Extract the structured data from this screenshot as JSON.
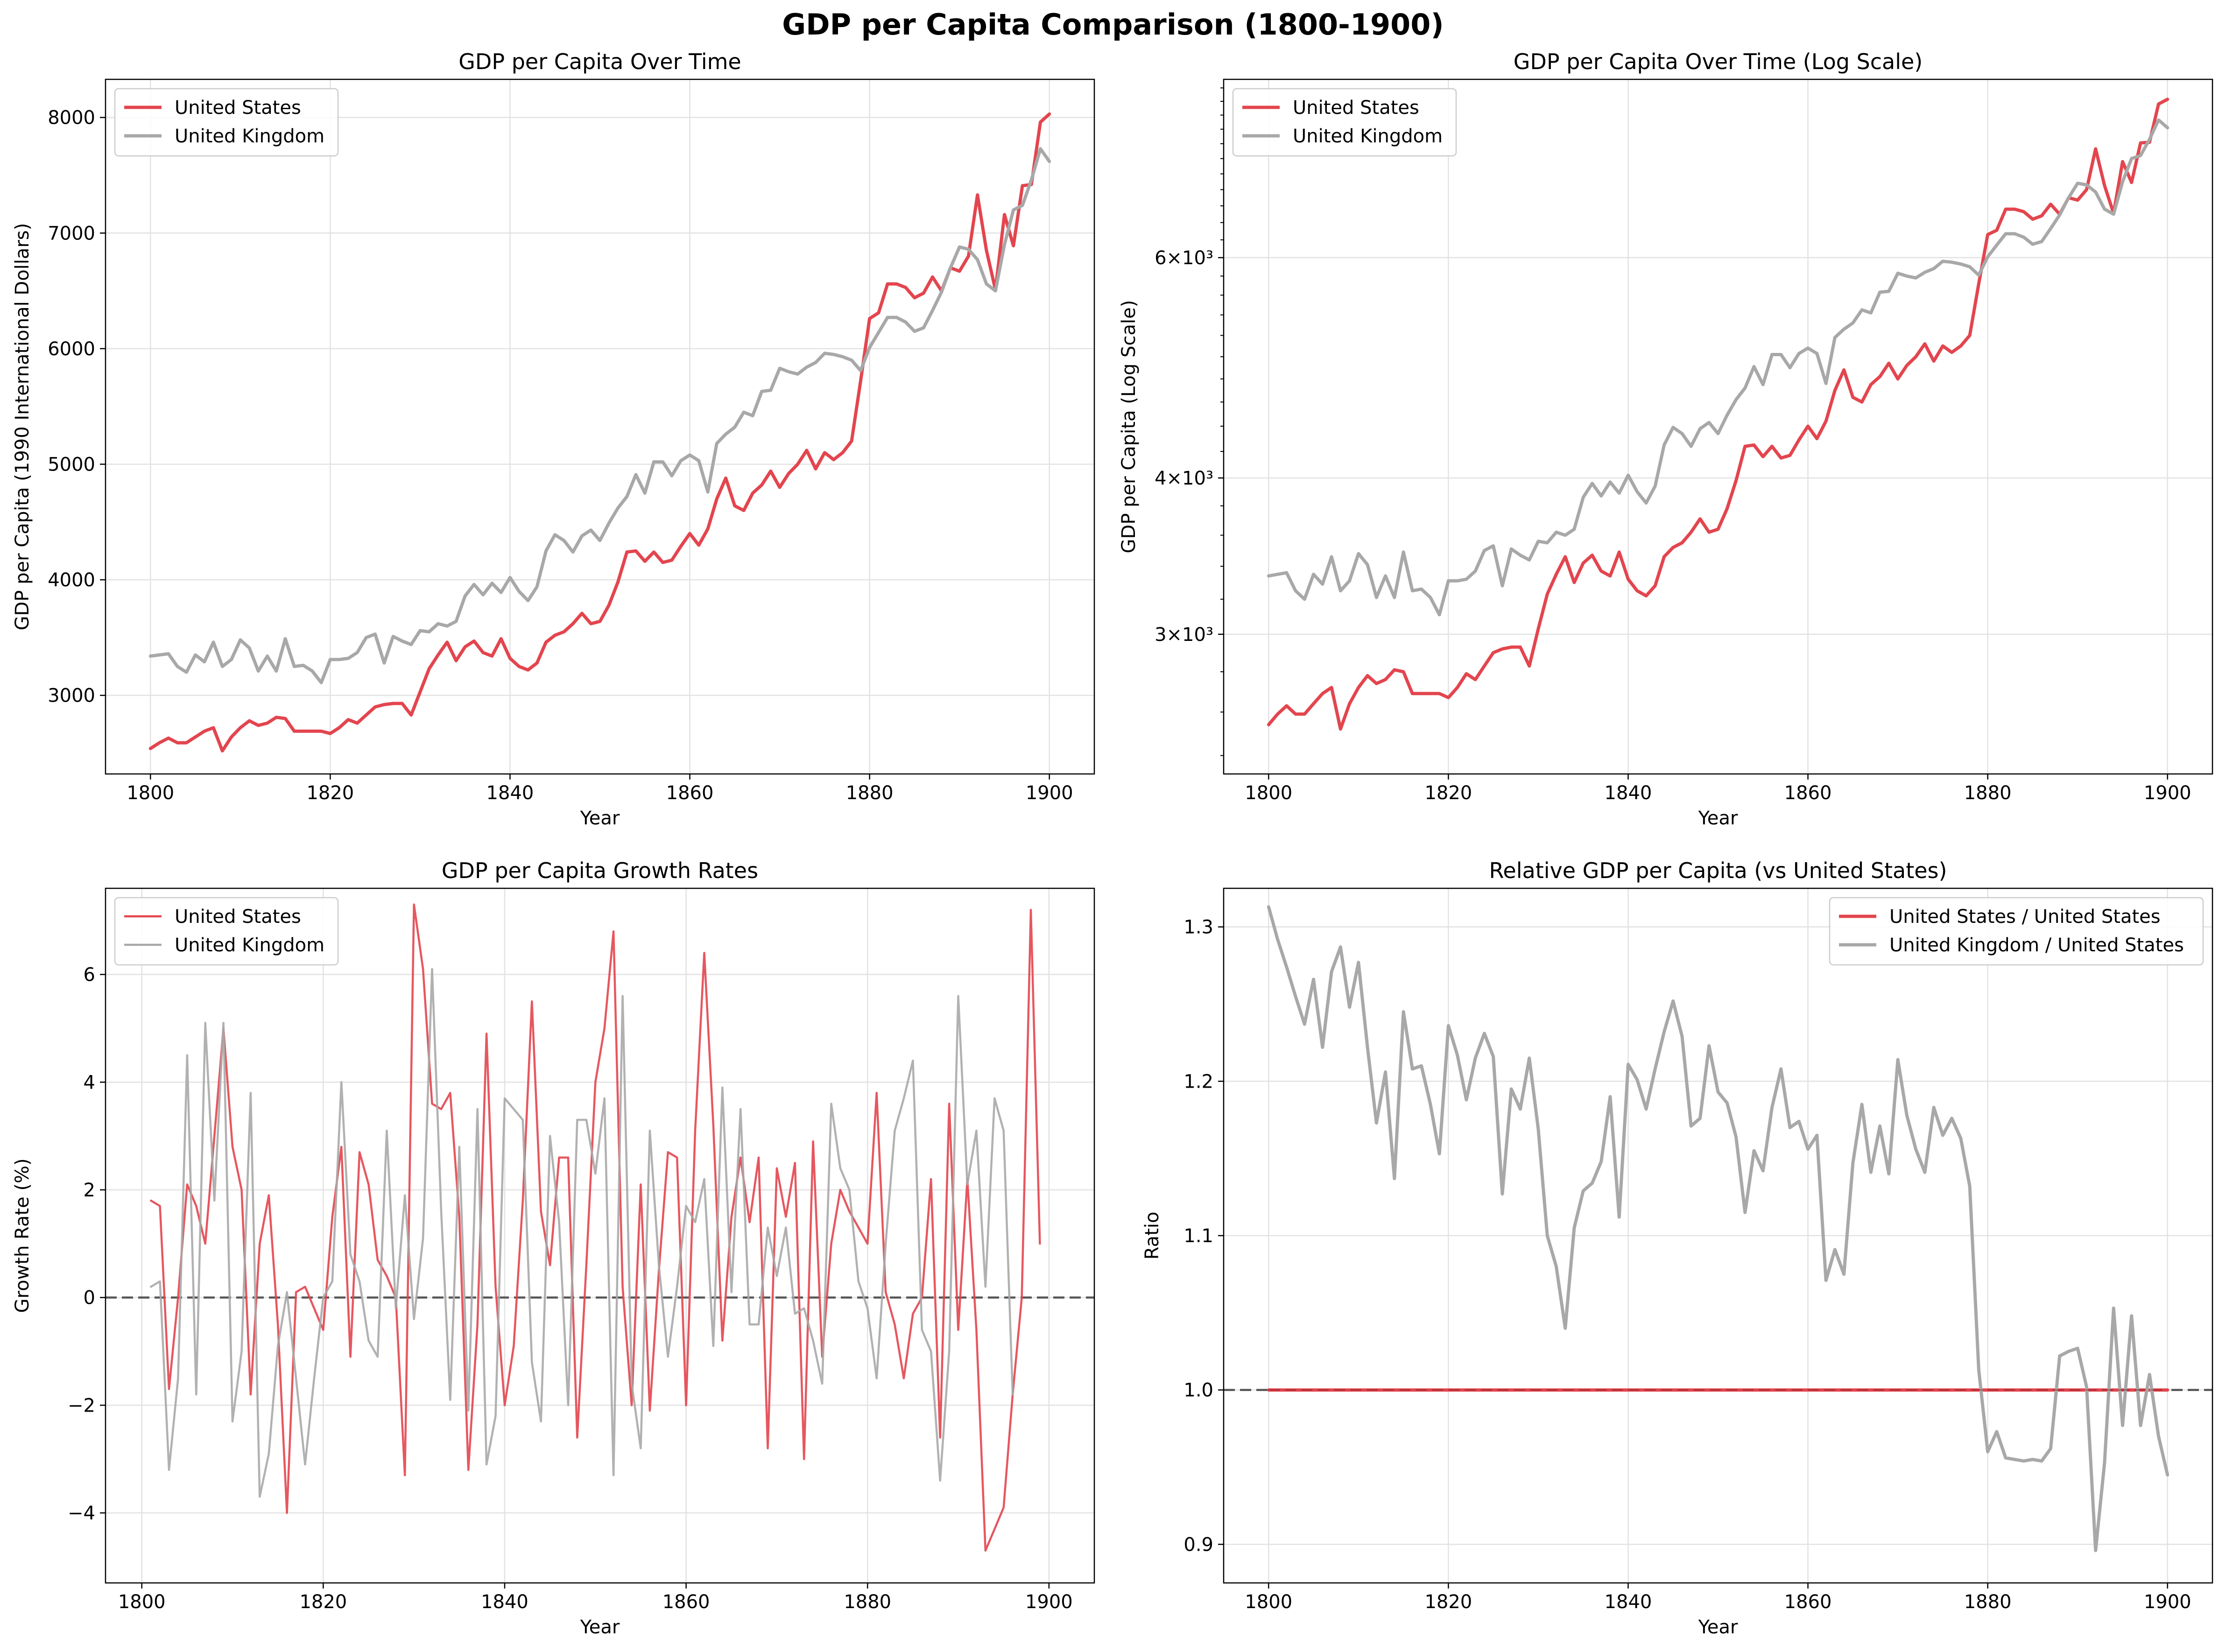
{
  "suptitle": "GDP per Capita Comparison (1800-1900)",
  "colors": {
    "us": "#e3454e",
    "uk": "#a8a8a8",
    "ref": "#555555",
    "grid": "#dddddd"
  },
  "chart_data": [
    {
      "type": "line",
      "title": "GDP per Capita Over Time",
      "xlabel": "Year",
      "ylabel": "GDP per Capita (1990 International Dollars)",
      "xlim": [
        1795,
        1905
      ],
      "ylim": [
        2320,
        8330
      ],
      "xticks": [
        1800,
        1820,
        1840,
        1860,
        1880,
        1900
      ],
      "yticks": [
        3000,
        4000,
        5000,
        6000,
        7000,
        8000
      ],
      "yticklabels": [
        "3000",
        "4000",
        "5000",
        "6000",
        "7000",
        "8000"
      ],
      "legend_position": "upper left",
      "grid": true,
      "series": [
        {
          "name": "United States",
          "color": "#e3454e",
          "x_start": 1800,
          "values": [
            2540,
            2590,
            2630,
            2590,
            2590,
            2640,
            2690,
            2720,
            2520,
            2640,
            2720,
            2780,
            2740,
            2760,
            2810,
            2800,
            2690,
            2690,
            2690,
            2690,
            2670,
            2720,
            2790,
            2760,
            2830,
            2900,
            2920,
            2930,
            2930,
            2830,
            3030,
            3230,
            3350,
            3460,
            3300,
            3420,
            3470,
            3370,
            3340,
            3490,
            3320,
            3250,
            3220,
            3280,
            3460,
            3520,
            3550,
            3620,
            3710,
            3620,
            3640,
            3780,
            3980,
            4240,
            4250,
            4160,
            4240,
            4150,
            4170,
            4290,
            4400,
            4300,
            4440,
            4700,
            4880,
            4640,
            4600,
            4750,
            4820,
            4940,
            4800,
            4920,
            5000,
            5120,
            4960,
            5100,
            5040,
            5100,
            5200,
            5720,
            6260,
            6310,
            6560,
            6560,
            6530,
            6440,
            6480,
            6620,
            6500,
            6700,
            6670,
            6800,
            7330,
            6850,
            6510,
            7160,
            6890,
            7410,
            7420,
            7960,
            8030
          ]
        },
        {
          "name": "United Kingdom",
          "color": "#a8a8a8",
          "x_start": 1800,
          "values": [
            3340,
            3350,
            3360,
            3250,
            3200,
            3350,
            3290,
            3460,
            3250,
            3310,
            3480,
            3410,
            3210,
            3340,
            3210,
            3490,
            3250,
            3260,
            3210,
            3110,
            3310,
            3310,
            3320,
            3370,
            3500,
            3530,
            3280,
            3510,
            3470,
            3440,
            3560,
            3550,
            3620,
            3600,
            3640,
            3860,
            3960,
            3870,
            3970,
            3890,
            4020,
            3900,
            3820,
            3940,
            4250,
            4390,
            4340,
            4240,
            4380,
            4430,
            4340,
            4490,
            4620,
            4720,
            4910,
            4750,
            5020,
            5020,
            4900,
            5030,
            5080,
            5030,
            4760,
            5180,
            5260,
            5320,
            5450,
            5420,
            5630,
            5640,
            5830,
            5800,
            5780,
            5840,
            5880,
            5960,
            5950,
            5930,
            5900,
            5810,
            6010,
            6140,
            6270,
            6270,
            6230,
            6150,
            6180,
            6330,
            6490,
            6700,
            6880,
            6860,
            6770,
            6560,
            6500,
            6900,
            7200,
            7240,
            7460,
            7730,
            7620
          ]
        }
      ]
    },
    {
      "type": "line",
      "title": "GDP per Capita Over Time (Log Scale)",
      "xlabel": "Year",
      "ylabel": "GDP per Capita (Log Scale)",
      "yscale": "log",
      "xlim": [
        1795,
        1905
      ],
      "ylim": [
        2320,
        8330
      ],
      "xticks": [
        1800,
        1820,
        1840,
        1860,
        1880,
        1900
      ],
      "yticks": [
        3000,
        4000,
        6000
      ],
      "yticklabels": [
        "3×10³",
        "4×10³",
        "6×10³"
      ],
      "legend_position": "upper left",
      "grid": true,
      "series": [
        {
          "name": "United States",
          "color": "#e3454e",
          "x_start": 1800,
          "values": [
            2540,
            2590,
            2630,
            2590,
            2590,
            2640,
            2690,
            2720,
            2520,
            2640,
            2720,
            2780,
            2740,
            2760,
            2810,
            2800,
            2690,
            2690,
            2690,
            2690,
            2670,
            2720,
            2790,
            2760,
            2830,
            2900,
            2920,
            2930,
            2930,
            2830,
            3030,
            3230,
            3350,
            3460,
            3300,
            3420,
            3470,
            3370,
            3340,
            3490,
            3320,
            3250,
            3220,
            3280,
            3460,
            3520,
            3550,
            3620,
            3710,
            3620,
            3640,
            3780,
            3980,
            4240,
            4250,
            4160,
            4240,
            4150,
            4170,
            4290,
            4400,
            4300,
            4440,
            4700,
            4880,
            4640,
            4600,
            4750,
            4820,
            4940,
            4800,
            4920,
            5000,
            5120,
            4960,
            5100,
            5040,
            5100,
            5200,
            5720,
            6260,
            6310,
            6560,
            6560,
            6530,
            6440,
            6480,
            6620,
            6500,
            6700,
            6670,
            6800,
            7330,
            6850,
            6510,
            7160,
            6890,
            7410,
            7420,
            7960,
            8030
          ]
        },
        {
          "name": "United Kingdom",
          "color": "#a8a8a8",
          "x_start": 1800,
          "values": [
            3340,
            3350,
            3360,
            3250,
            3200,
            3350,
            3290,
            3460,
            3250,
            3310,
            3480,
            3410,
            3210,
            3340,
            3210,
            3490,
            3250,
            3260,
            3210,
            3110,
            3310,
            3310,
            3320,
            3370,
            3500,
            3530,
            3280,
            3510,
            3470,
            3440,
            3560,
            3550,
            3620,
            3600,
            3640,
            3860,
            3960,
            3870,
            3970,
            3890,
            4020,
            3900,
            3820,
            3940,
            4250,
            4390,
            4340,
            4240,
            4380,
            4430,
            4340,
            4490,
            4620,
            4720,
            4910,
            4750,
            5020,
            5020,
            4900,
            5030,
            5080,
            5030,
            4760,
            5180,
            5260,
            5320,
            5450,
            5420,
            5630,
            5640,
            5830,
            5800,
            5780,
            5840,
            5880,
            5960,
            5950,
            5930,
            5900,
            5810,
            6010,
            6140,
            6270,
            6270,
            6230,
            6150,
            6180,
            6330,
            6490,
            6700,
            6880,
            6860,
            6770,
            6560,
            6500,
            6900,
            7200,
            7240,
            7460,
            7730,
            7620
          ]
        }
      ]
    },
    {
      "type": "line",
      "title": "GDP per Capita Growth Rates",
      "xlabel": "Year",
      "ylabel": "Growth Rate (%)",
      "xlim": [
        1796,
        1905
      ],
      "ylim": [
        -5.3,
        7.6
      ],
      "xticks": [
        1800,
        1820,
        1840,
        1860,
        1880,
        1900
      ],
      "yticks": [
        -4,
        -2,
        0,
        2,
        4,
        6
      ],
      "yticklabels": [
        "−4",
        "−2",
        "0",
        "2",
        "4",
        "6"
      ],
      "reference_line": 0,
      "legend_position": "upper left",
      "grid": true,
      "series": [
        {
          "name": "United States",
          "color": "#e3454e",
          "x_start": 1801,
          "values": [
            1.8,
            1.7,
            -1.7,
            0,
            2.1,
            1.7,
            1,
            3,
            5,
            2.8,
            2,
            -1.8,
            1,
            1.9,
            -0.5,
            -4,
            0.1,
            0.2,
            -0.2,
            -0.6,
            1.5,
            2.8,
            -1.1,
            2.7,
            2.1,
            0.7,
            0.4,
            0,
            -3.3,
            7.3,
            6.1,
            3.6,
            3.5,
            3.8,
            1.5,
            -3.2,
            -0.5,
            4.9,
            0.2,
            -2,
            -0.9,
            1.8,
            5.5,
            1.6,
            0.6,
            2.6,
            2.6,
            -2.6,
            0.6,
            4,
            5,
            6.8,
            0.2,
            -2,
            2.1,
            -2.1,
            0.5,
            2.7,
            2.6,
            -2,
            3.1,
            6.4,
            3.2,
            -0.8,
            1.5,
            2.6,
            1.4,
            2.6,
            -2.8,
            2.4,
            1.5,
            2.5,
            -3,
            2.9,
            -1.1,
            1,
            2,
            1.6,
            1.3,
            1,
            3.8,
            0.1,
            -0.5,
            -1.5,
            -0.3,
            0,
            2.2,
            -2.6,
            3.6,
            -0.6,
            2.2,
            -0.6,
            -4.7,
            -4.3,
            -3.9,
            -1.8,
            0,
            7.2,
            1
          ]
        },
        {
          "name": "United Kingdom",
          "color": "#a8a8a8",
          "x_start": 1801,
          "values": [
            0.2,
            0.3,
            -3.2,
            -1.5,
            4.5,
            -1.8,
            5.1,
            1.8,
            5.1,
            -2.3,
            -1,
            3.8,
            -3.7,
            -2.9,
            -0.9,
            0.1,
            -1.5,
            -3.1,
            -1.5,
            0,
            0.3,
            4,
            0.8,
            0.3,
            -0.8,
            -1.1,
            3.1,
            -0.2,
            1.9,
            -0.4,
            1.1,
            6.1,
            1.6,
            -1.9,
            2.8,
            -2.1,
            3.5,
            -3.1,
            -2.2,
            3.7,
            3.5,
            3.3,
            -1.2,
            -2.3,
            3,
            1.4,
            -2,
            3.3,
            3.3,
            2.3,
            3.7,
            -3.3,
            5.6,
            -1.6,
            -2.8,
            3.1,
            0.6,
            -1.1,
            0.2,
            1.7,
            1.4,
            2.2,
            -0.9,
            3.9,
            0.1,
            3.5,
            -0.5,
            -0.5,
            1.3,
            0.4,
            1.3,
            -0.3,
            -0.2,
            -0.8,
            -1.6,
            3.6,
            2.4,
            2,
            0.3,
            -0.2,
            -1.5,
            1,
            3.1,
            3.7,
            4.4,
            -0.6,
            -1,
            -3.4,
            -1,
            5.6,
            2.1,
            3.1,
            0.2,
            3.7,
            3.1,
            -1.8
          ]
        }
      ]
    },
    {
      "type": "line",
      "title": "Relative GDP per Capita (vs United States)",
      "xlabel": "Year",
      "ylabel": "Ratio",
      "xlim": [
        1795,
        1905
      ],
      "ylim": [
        0.875,
        1.325
      ],
      "xticks": [
        1800,
        1820,
        1840,
        1860,
        1880,
        1900
      ],
      "yticks": [
        0.9,
        1.0,
        1.1,
        1.2,
        1.3
      ],
      "yticklabels": [
        "0.9",
        "1.0",
        "1.1",
        "1.2",
        "1.3"
      ],
      "reference_line": 1.0,
      "legend_position": "upper right",
      "grid": true,
      "series": [
        {
          "name": "United States / United States",
          "color": "#e3454e",
          "x_start": 1800,
          "values": [
            1,
            1,
            1,
            1,
            1,
            1,
            1,
            1,
            1,
            1,
            1,
            1,
            1,
            1,
            1,
            1,
            1,
            1,
            1,
            1,
            1,
            1,
            1,
            1,
            1,
            1,
            1,
            1,
            1,
            1,
            1,
            1,
            1,
            1,
            1,
            1,
            1,
            1,
            1,
            1,
            1,
            1,
            1,
            1,
            1,
            1,
            1,
            1,
            1,
            1,
            1,
            1,
            1,
            1,
            1,
            1,
            1,
            1,
            1,
            1,
            1,
            1,
            1,
            1,
            1,
            1,
            1,
            1,
            1,
            1,
            1,
            1,
            1,
            1,
            1,
            1,
            1,
            1,
            1,
            1,
            1,
            1,
            1,
            1,
            1,
            1,
            1,
            1,
            1,
            1,
            1,
            1,
            1,
            1,
            1,
            1,
            1,
            1,
            1,
            1,
            1
          ]
        },
        {
          "name": "United Kingdom / United States",
          "color": "#a8a8a8",
          "x_start": 1800,
          "values": [
            1.313,
            1.292,
            1.274,
            1.255,
            1.237,
            1.266,
            1.222,
            1.271,
            1.287,
            1.248,
            1.277,
            1.222,
            1.173,
            1.206,
            1.137,
            1.245,
            1.208,
            1.21,
            1.185,
            1.153,
            1.236,
            1.217,
            1.188,
            1.215,
            1.231,
            1.216,
            1.127,
            1.195,
            1.182,
            1.215,
            1.169,
            1.1,
            1.08,
            1.04,
            1.105,
            1.129,
            1.134,
            1.148,
            1.19,
            1.112,
            1.211,
            1.201,
            1.182,
            1.208,
            1.232,
            1.252,
            1.229,
            1.171,
            1.176,
            1.223,
            1.193,
            1.186,
            1.164,
            1.115,
            1.155,
            1.142,
            1.183,
            1.208,
            1.17,
            1.174,
            1.156,
            1.165,
            1.071,
            1.091,
            1.075,
            1.147,
            1.185,
            1.141,
            1.171,
            1.14,
            1.214,
            1.178,
            1.156,
            1.141,
            1.183,
            1.165,
            1.176,
            1.163,
            1.132,
            1.013,
            0.96,
            0.973,
            0.956,
            0.955,
            0.954,
            0.955,
            0.954,
            0.962,
            1.022,
            1.025,
            1.027,
            1.002,
            0.896,
            0.953,
            1.053,
            0.977,
            1.048,
            0.977,
            1.01,
            0.97,
            0.945
          ]
        }
      ]
    }
  ]
}
